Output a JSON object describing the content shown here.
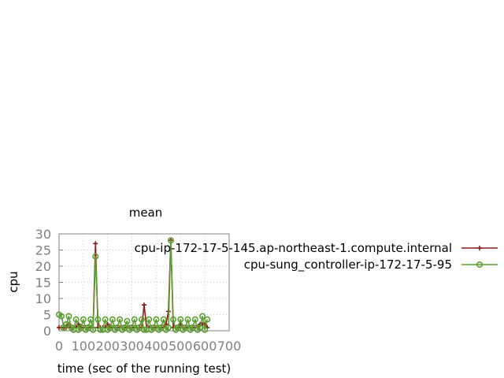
{
  "chart_data": {
    "type": "line",
    "title": "mean",
    "xlabel": "time (sec of the running test)",
    "ylabel": "cpu",
    "xlim": [
      0,
      700
    ],
    "ylim": [
      0,
      30
    ],
    "xticks": [
      0,
      100,
      200,
      300,
      400,
      500,
      600,
      700
    ],
    "yticks": [
      0,
      5,
      10,
      15,
      20,
      25,
      30
    ],
    "grid": true,
    "legend_position": "right",
    "series": [
      {
        "name": "cpu-ip-172-17-5-145.ap-northeast-1.compute.internal",
        "color": "#8b1a1a",
        "marker": "plus",
        "x": [
          0,
          10,
          20,
          30,
          40,
          50,
          60,
          70,
          80,
          90,
          100,
          110,
          120,
          130,
          140,
          150,
          160,
          170,
          180,
          190,
          200,
          210,
          220,
          230,
          240,
          250,
          260,
          270,
          280,
          290,
          300,
          310,
          320,
          330,
          340,
          350,
          360,
          370,
          380,
          390,
          400,
          410,
          420,
          430,
          440,
          450,
          460,
          470,
          480,
          490,
          500,
          510,
          520,
          530,
          540,
          550,
          560,
          570,
          580,
          590,
          600,
          610
        ],
        "y": [
          1,
          1,
          1,
          1,
          2,
          1,
          1,
          1,
          2,
          1,
          1,
          1,
          1,
          1,
          1,
          27,
          1,
          1,
          1,
          1,
          2,
          1,
          1,
          1,
          1,
          1,
          1,
          1,
          1,
          1,
          1,
          1,
          1,
          1,
          1,
          8,
          1,
          1,
          1,
          1,
          1,
          1,
          1,
          1,
          2,
          6,
          28,
          1,
          1,
          1,
          2,
          1,
          1,
          1,
          1,
          1,
          1,
          1,
          2,
          2,
          2,
          1
        ]
      },
      {
        "name": "cpu-sung_controller-ip-172-17-5-95",
        "color": "#5c9e31",
        "marker": "circle",
        "x": [
          0,
          10,
          20,
          30,
          40,
          50,
          60,
          70,
          80,
          90,
          100,
          110,
          120,
          130,
          140,
          150,
          160,
          170,
          180,
          190,
          200,
          210,
          220,
          230,
          240,
          250,
          260,
          270,
          280,
          290,
          300,
          310,
          320,
          330,
          340,
          350,
          360,
          370,
          380,
          390,
          400,
          410,
          420,
          430,
          440,
          450,
          460,
          470,
          480,
          490,
          500,
          510,
          520,
          530,
          540,
          550,
          560,
          570,
          580,
          590,
          600,
          610
        ],
        "y": [
          5,
          4.5,
          1,
          2,
          4.5,
          1,
          0.3,
          3.5,
          0.3,
          1,
          3.5,
          0.3,
          1,
          3.5,
          0.3,
          23,
          3.5,
          0.3,
          0.3,
          3.5,
          0.3,
          1,
          3.5,
          0.3,
          1,
          3.5,
          0.3,
          1,
          3,
          0.3,
          1,
          3.5,
          0.3,
          1,
          3.5,
          0.3,
          0.3,
          3.5,
          0.3,
          1,
          3.5,
          0.3,
          1,
          3.5,
          0.3,
          1,
          28,
          3.5,
          0.3,
          1,
          3.5,
          0.3,
          1,
          3.5,
          0.3,
          1,
          3.5,
          0.3,
          1,
          4.5,
          0.3,
          3.5
        ]
      }
    ]
  }
}
